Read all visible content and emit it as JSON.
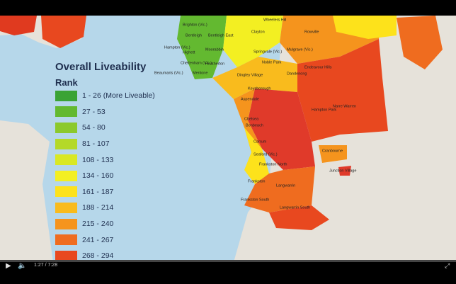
{
  "legend": {
    "title": "Overall Liveability",
    "subtitle": "Rank",
    "items": [
      {
        "label": "1 - 26 (More Liveable)",
        "color": "#3aa334"
      },
      {
        "label": "27 - 53",
        "color": "#63b930"
      },
      {
        "label": "54 - 80",
        "color": "#8cc92c"
      },
      {
        "label": "81 - 107",
        "color": "#b4d928"
      },
      {
        "label": "108 - 133",
        "color": "#d9e824"
      },
      {
        "label": "134 - 160",
        "color": "#f3ef22"
      },
      {
        "label": "161 - 187",
        "color": "#fde21b"
      },
      {
        "label": "188 - 214",
        "color": "#f9bb1d"
      },
      {
        "label": "215 - 240",
        "color": "#f5941d"
      },
      {
        "label": "241 - 267",
        "color": "#ef6c1f"
      },
      {
        "label": "268 - 294",
        "color": "#e8481f"
      }
    ]
  },
  "suburbs": [
    "Brighton (Vic.)",
    "Bentleigh",
    "Bentleigh East",
    "Clayton",
    "Hampton (Vic.)",
    "Highett",
    "Moorabbin",
    "Cheltenham (Vic.)",
    "Heatherton",
    "Springvale (Vic.)",
    "Noble Park",
    "Beaumaris (Vic.)",
    "Mentone",
    "Dingley Village",
    "Keysborough",
    "Dandenong",
    "Aspendale",
    "Chelsea",
    "Bonbeach",
    "Carrum",
    "Seaford (Vic.)",
    "Frankston North",
    "Frankston",
    "Frankston South",
    "Langwarrin",
    "Langwarrin South",
    "Cranbourne",
    "Junction Village",
    "Hampton Park",
    "Narre Warren",
    "Endeavour Hills",
    "Mulgrave (Vic.)",
    "Wheelers Hill",
    "Rowville"
  ],
  "player": {
    "time": "1:27 / 7:28"
  }
}
